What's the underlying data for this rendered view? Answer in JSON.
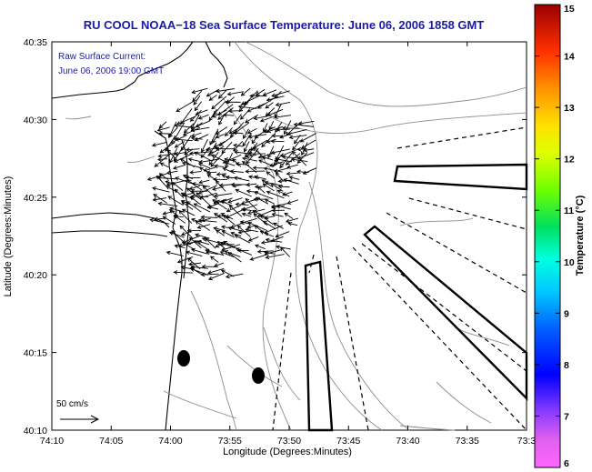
{
  "title": "RU COOL  NOAA−18  Sea Surface Temperature:  June 06, 2006 1858 GMT",
  "legend": {
    "line1": "Raw Surface Current:",
    "line2": "June 06, 2006 19:00 GMT",
    "scale_label": "50 cm/s"
  },
  "axes": {
    "xlabel": "Longitude (Degrees:Minutes)",
    "ylabel": "Latitude (Degrees:Minutes)",
    "x_ticks": [
      "74:10",
      "74:05",
      "74:00",
      "73:55",
      "73:50",
      "73:45",
      "73:40",
      "73:35",
      "73:3"
    ],
    "y_ticks": [
      "40:35",
      "40:30",
      "40:25",
      "40:20",
      "40:15",
      "40:10"
    ]
  },
  "colorbar": {
    "label": "Temperature (°C)",
    "ticks": [
      "15",
      "14",
      "13",
      "12",
      "11",
      "10",
      "9",
      "8",
      "7",
      "6"
    ],
    "min": 6,
    "max": 15
  }
}
